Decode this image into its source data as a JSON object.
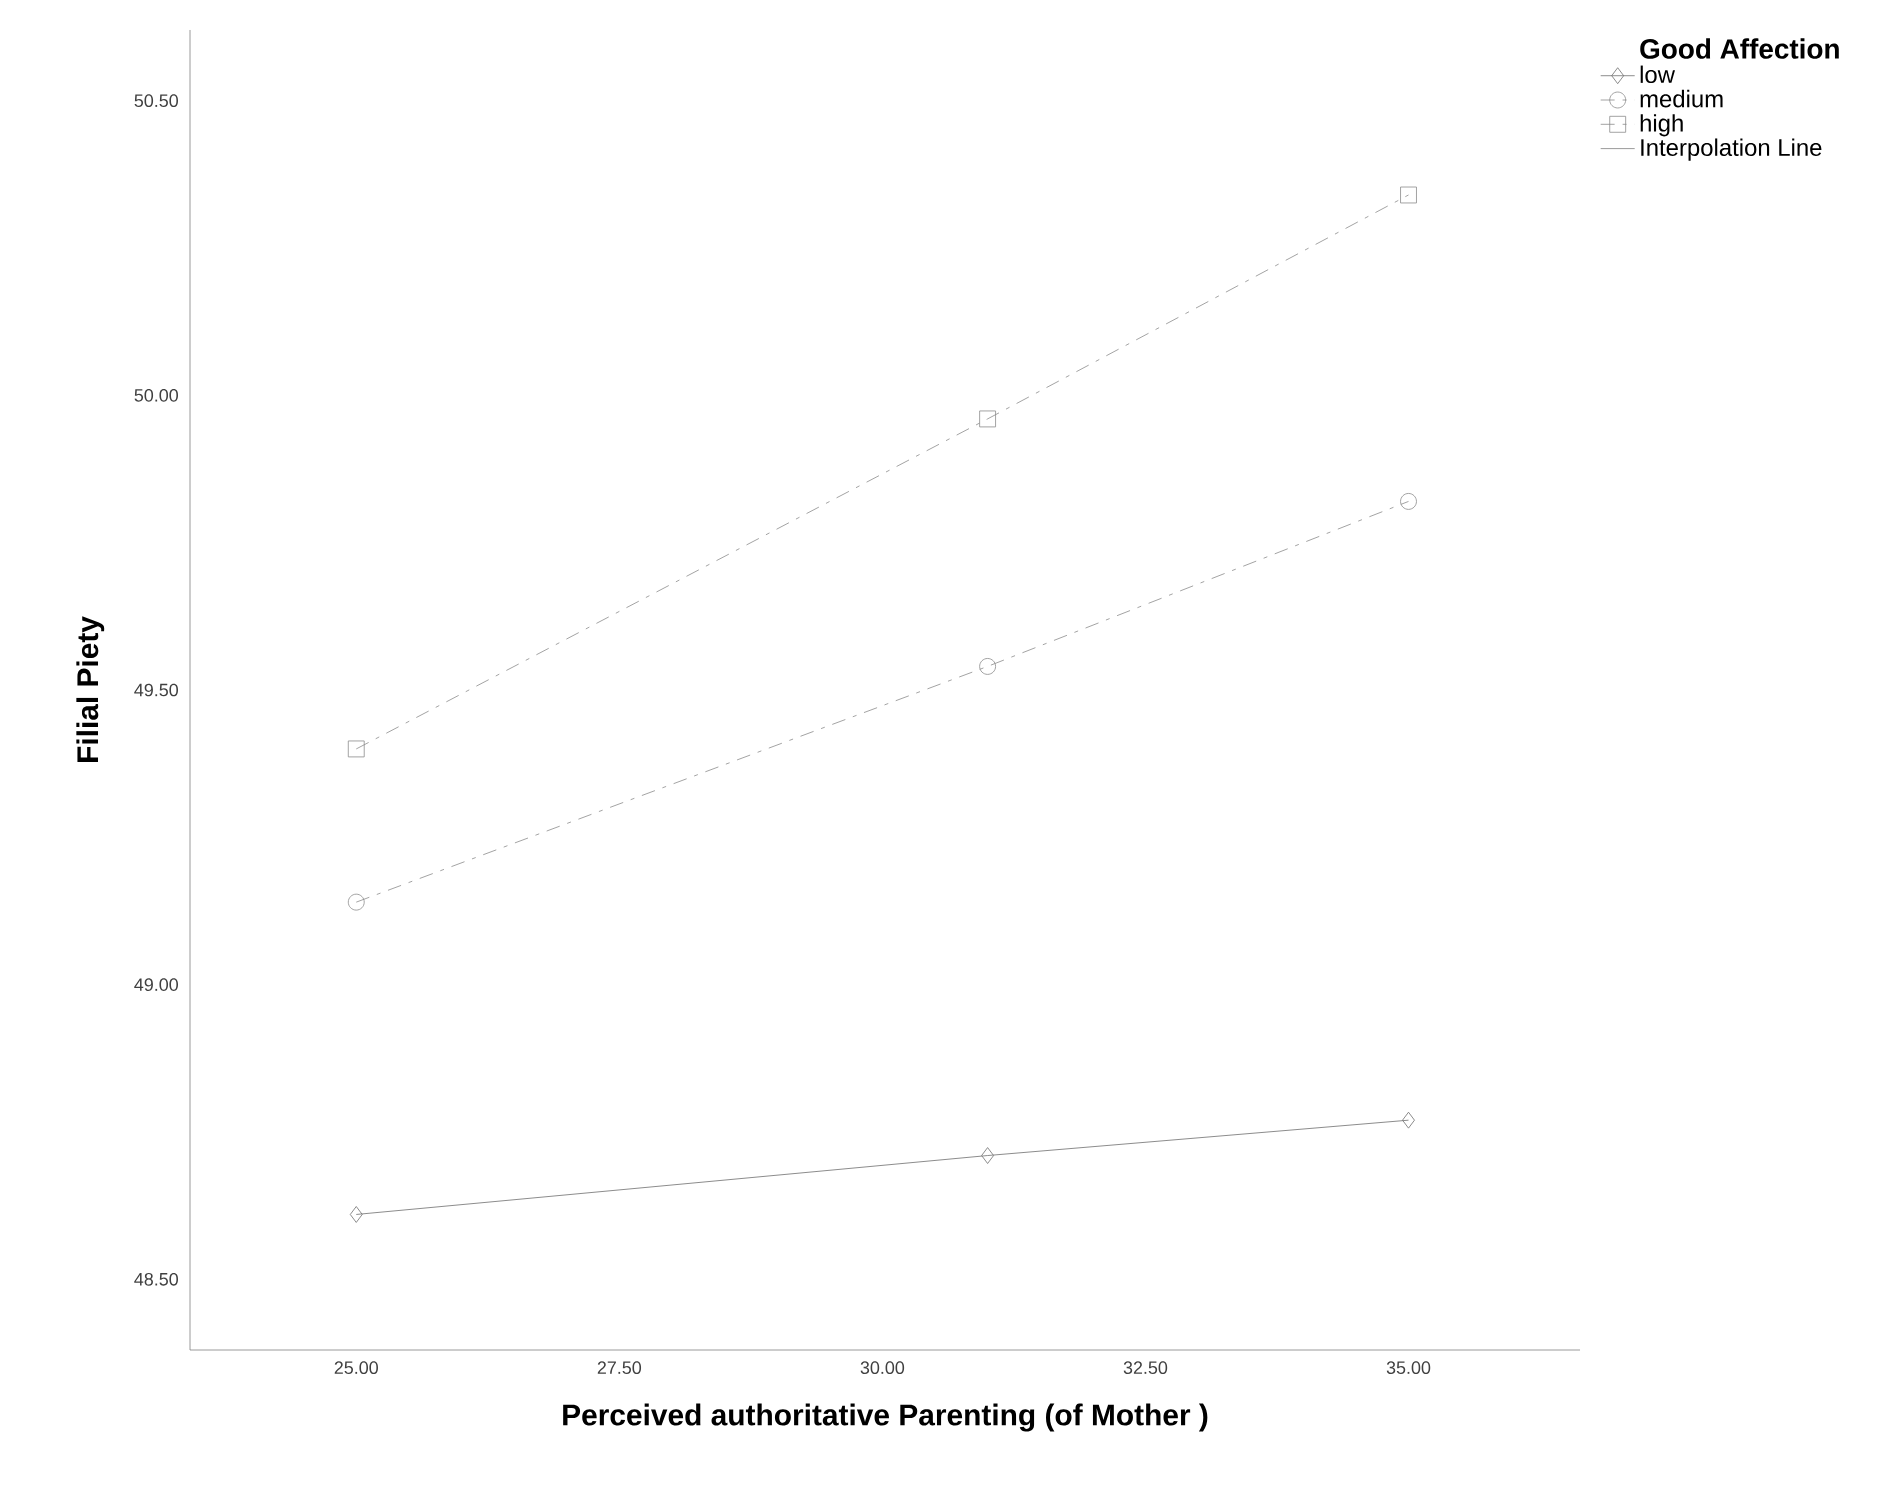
{
  "chart_data": {
    "type": "line",
    "xlabel": "Perceived authoritative Parenting (of Mother )",
    "ylabel": "Filial Piety",
    "legend_title": "Good Affection",
    "annotations": [
      "Interpolation Line"
    ],
    "x": [
      25,
      31,
      35
    ],
    "series": [
      {
        "name": "low",
        "color": "#6e6e6e",
        "marker": "diamond",
        "line_style": "solid",
        "values": [
          48.61,
          48.71,
          48.77
        ]
      },
      {
        "name": "medium",
        "color": "#8c8c8c",
        "marker": "circle",
        "line_style": "dashed",
        "values": [
          49.14,
          49.54,
          49.82
        ]
      },
      {
        "name": "high",
        "color": "#8c8c8c",
        "marker": "square",
        "line_style": "dashed",
        "values": [
          49.4,
          49.96,
          50.34
        ]
      }
    ],
    "xlim": [
      23.42,
      36.63
    ],
    "ylim": [
      48.38,
      50.62
    ],
    "xticks": [
      {
        "value": 25,
        "label": "25.00"
      },
      {
        "value": 27.5,
        "label": "27.50"
      },
      {
        "value": 30,
        "label": "30.00"
      },
      {
        "value": 32.5,
        "label": "32.50"
      },
      {
        "value": 35,
        "label": "35.00"
      }
    ],
    "yticks": [
      {
        "value": 48.5,
        "label": "48.50"
      },
      {
        "value": 49,
        "label": "49.00"
      },
      {
        "value": 49.5,
        "label": "49.50"
      },
      {
        "value": 50,
        "label": "50.00"
      },
      {
        "value": 50.5,
        "label": "50.50"
      }
    ],
    "grid": false,
    "legend": "top right"
  }
}
